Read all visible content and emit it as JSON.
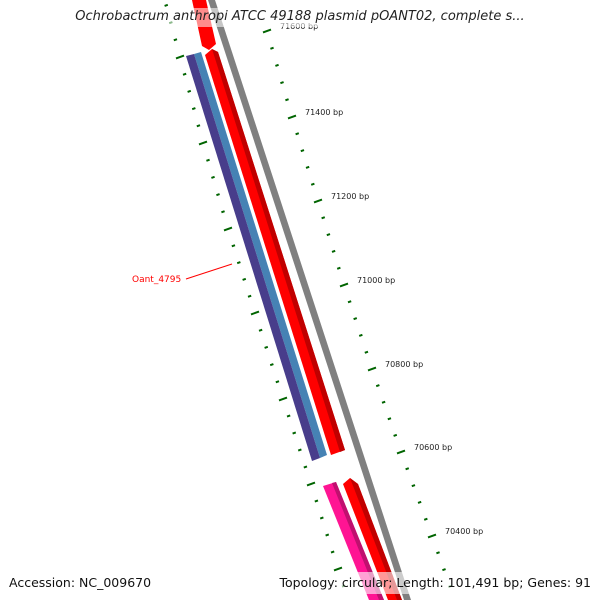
{
  "title": "Ochrobactrum anthropi ATCC 49188 plasmid pOANT02, complete s...",
  "footer": {
    "accession": "Accession: NC_009670",
    "summary": "Topology: circular; Length: 101,491 bp; Genes: 91"
  },
  "ruler": {
    "labels": [
      "71600 bp",
      "71400 bp",
      "71200 bp",
      "71000 bp",
      "70800 bp",
      "70600 bp",
      "70400 bp"
    ]
  },
  "features": [
    {
      "label": "Oant_4795",
      "color": "#ff0000"
    }
  ],
  "colors": {
    "backbone": "#808080",
    "red": "#ff0000",
    "blue": "#4682b4",
    "purple": "#483d8b",
    "pink": "#ff1493",
    "tick": "#006400"
  }
}
